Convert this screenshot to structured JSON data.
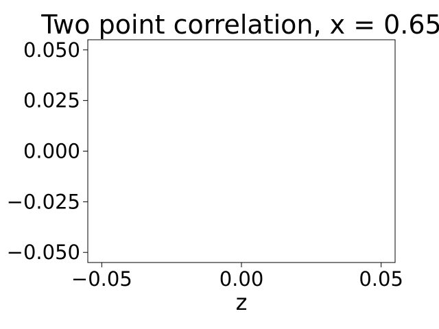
{
  "chart_data": {
    "type": "line",
    "title": "Two point correlation, x = 0.65",
    "xlabel": "z",
    "ylabel": "",
    "xlim": [
      -0.055,
      0.055
    ],
    "ylim": [
      -0.055,
      0.055
    ],
    "x_ticks": [
      {
        "value": -0.05,
        "label": "−0.05"
      },
      {
        "value": 0.0,
        "label": "0.00"
      },
      {
        "value": 0.05,
        "label": "0.05"
      }
    ],
    "y_ticks": [
      {
        "value": 0.05,
        "label": "0.050"
      },
      {
        "value": 0.025,
        "label": "0.025"
      },
      {
        "value": 0.0,
        "label": "0.000"
      },
      {
        "value": -0.025,
        "label": "−0.025"
      },
      {
        "value": -0.05,
        "label": "−0.050"
      }
    ],
    "series": [],
    "grid": false,
    "legend": "none"
  }
}
